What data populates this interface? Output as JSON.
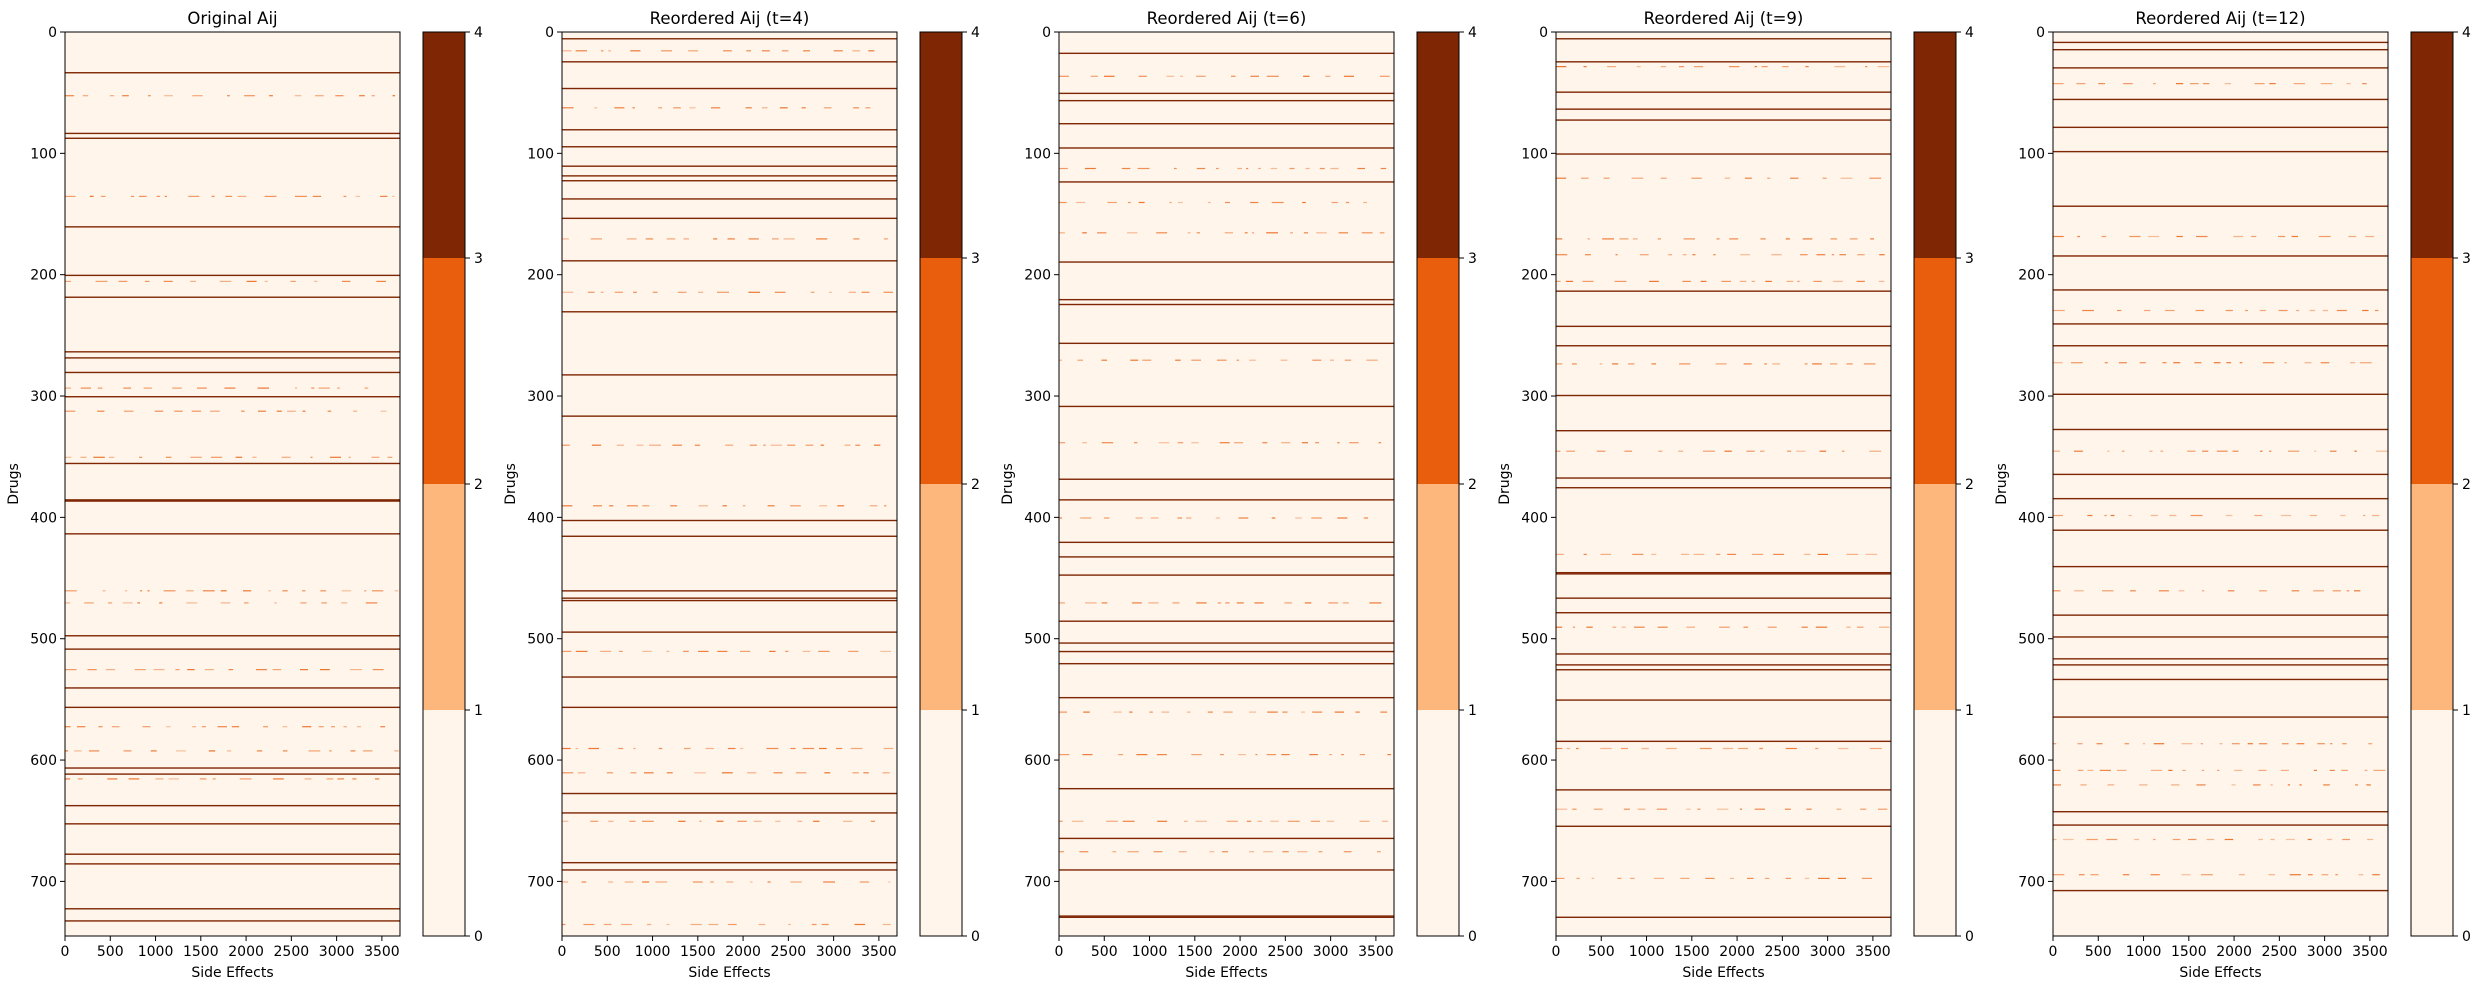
{
  "figure": {
    "panel_count": 5
  },
  "colorbar": {
    "colors": [
      "#fff5eb",
      "#fdb67b",
      "#e95e0d",
      "#7f2704"
    ],
    "bounds": [
      0,
      1,
      2,
      3,
      4
    ],
    "tick_labels": [
      "0",
      "1",
      "2",
      "3",
      "4"
    ]
  },
  "chart_data": [
    {
      "type": "heatmap",
      "title": "Original Aij",
      "xlabel": "Side Effects",
      "ylabel": "Drugs",
      "xlim": [
        0,
        3700
      ],
      "ylim": [
        745,
        0
      ],
      "xticks": [
        0,
        500,
        1000,
        1500,
        2000,
        2500,
        3000,
        3500
      ],
      "yticks": [
        0,
        100,
        200,
        300,
        400,
        500,
        600,
        700
      ],
      "background_value": 0,
      "dense_rows": [
        {
          "row": 33,
          "value": 4
        },
        {
          "row": 83,
          "value": 4
        },
        {
          "row": 87,
          "value": 4
        },
        {
          "row": 160,
          "value": 4
        },
        {
          "row": 200,
          "value": 4
        },
        {
          "row": 218,
          "value": 4
        },
        {
          "row": 263,
          "value": 4
        },
        {
          "row": 268,
          "value": 3
        },
        {
          "row": 280,
          "value": 4
        },
        {
          "row": 300,
          "value": 4
        },
        {
          "row": 355,
          "value": 4
        },
        {
          "row": 385,
          "value": 4
        },
        {
          "row": 386,
          "value": 4
        },
        {
          "row": 413,
          "value": 4
        },
        {
          "row": 497,
          "value": 4
        },
        {
          "row": 508,
          "value": 4
        },
        {
          "row": 540,
          "value": 4
        },
        {
          "row": 556,
          "value": 4
        },
        {
          "row": 606,
          "value": 4
        },
        {
          "row": 611,
          "value": 4
        },
        {
          "row": 637,
          "value": 4
        },
        {
          "row": 652,
          "value": 4
        },
        {
          "row": 677,
          "value": 4
        },
        {
          "row": 685,
          "value": 4
        },
        {
          "row": 722,
          "value": 4
        },
        {
          "row": 732,
          "value": 4
        }
      ],
      "sparse_rows": [
        {
          "row": 52,
          "value": 2
        },
        {
          "row": 135,
          "value": 2
        },
        {
          "row": 205,
          "value": 2
        },
        {
          "row": 293,
          "value": 2
        },
        {
          "row": 312,
          "value": 2
        },
        {
          "row": 350,
          "value": 2
        },
        {
          "row": 460,
          "value": 2
        },
        {
          "row": 470,
          "value": 2
        },
        {
          "row": 525,
          "value": 2
        },
        {
          "row": 572,
          "value": 2
        },
        {
          "row": 592,
          "value": 2
        },
        {
          "row": 615,
          "value": 2
        }
      ]
    },
    {
      "type": "heatmap",
      "title": "Reordered Aij (t=4)",
      "xlabel": "Side Effects",
      "ylabel": "Drugs",
      "xlim": [
        0,
        3700
      ],
      "ylim": [
        745,
        0
      ],
      "xticks": [
        0,
        500,
        1000,
        1500,
        2000,
        2500,
        3000,
        3500
      ],
      "yticks": [
        0,
        100,
        200,
        300,
        400,
        500,
        600,
        700
      ],
      "background_value": 0,
      "dense_rows": [
        {
          "row": 5,
          "value": 4
        },
        {
          "row": 24,
          "value": 4
        },
        {
          "row": 46,
          "value": 4
        },
        {
          "row": 80,
          "value": 4
        },
        {
          "row": 94,
          "value": 4
        },
        {
          "row": 110,
          "value": 4
        },
        {
          "row": 118,
          "value": 4
        },
        {
          "row": 122,
          "value": 4
        },
        {
          "row": 137,
          "value": 4
        },
        {
          "row": 153,
          "value": 4
        },
        {
          "row": 188,
          "value": 4
        },
        {
          "row": 230,
          "value": 4
        },
        {
          "row": 282,
          "value": 4
        },
        {
          "row": 316,
          "value": 4
        },
        {
          "row": 402,
          "value": 4
        },
        {
          "row": 415,
          "value": 4
        },
        {
          "row": 460,
          "value": 4
        },
        {
          "row": 466,
          "value": 4
        },
        {
          "row": 468,
          "value": 4
        },
        {
          "row": 494,
          "value": 4
        },
        {
          "row": 531,
          "value": 4
        },
        {
          "row": 556,
          "value": 4
        },
        {
          "row": 627,
          "value": 4
        },
        {
          "row": 643,
          "value": 4
        },
        {
          "row": 684,
          "value": 4
        },
        {
          "row": 690,
          "value": 4
        }
      ],
      "sparse_rows": [
        {
          "row": 15,
          "value": 2
        },
        {
          "row": 62,
          "value": 2
        },
        {
          "row": 170,
          "value": 2
        },
        {
          "row": 214,
          "value": 2
        },
        {
          "row": 340,
          "value": 2
        },
        {
          "row": 390,
          "value": 2
        },
        {
          "row": 510,
          "value": 2
        },
        {
          "row": 590,
          "value": 2
        },
        {
          "row": 610,
          "value": 2
        },
        {
          "row": 650,
          "value": 2
        },
        {
          "row": 700,
          "value": 2
        },
        {
          "row": 735,
          "value": 2
        }
      ]
    },
    {
      "type": "heatmap",
      "title": "Reordered Aij (t=6)",
      "xlabel": "Side Effects",
      "ylabel": "Drugs",
      "xlim": [
        0,
        3700
      ],
      "ylim": [
        745,
        0
      ],
      "xticks": [
        0,
        500,
        1000,
        1500,
        2000,
        2500,
        3000,
        3500
      ],
      "yticks": [
        0,
        100,
        200,
        300,
        400,
        500,
        600,
        700
      ],
      "background_value": 0,
      "dense_rows": [
        {
          "row": 17,
          "value": 4
        },
        {
          "row": 50,
          "value": 4
        },
        {
          "row": 56,
          "value": 4
        },
        {
          "row": 75,
          "value": 4
        },
        {
          "row": 95,
          "value": 4
        },
        {
          "row": 123,
          "value": 4
        },
        {
          "row": 189,
          "value": 4
        },
        {
          "row": 220,
          "value": 4
        },
        {
          "row": 224,
          "value": 4
        },
        {
          "row": 256,
          "value": 4
        },
        {
          "row": 308,
          "value": 4
        },
        {
          "row": 368,
          "value": 4
        },
        {
          "row": 385,
          "value": 4
        },
        {
          "row": 420,
          "value": 4
        },
        {
          "row": 432,
          "value": 4
        },
        {
          "row": 447,
          "value": 4
        },
        {
          "row": 485,
          "value": 4
        },
        {
          "row": 503,
          "value": 4
        },
        {
          "row": 510,
          "value": 4
        },
        {
          "row": 520,
          "value": 4
        },
        {
          "row": 548,
          "value": 4
        },
        {
          "row": 623,
          "value": 4
        },
        {
          "row": 664,
          "value": 4
        },
        {
          "row": 690,
          "value": 4
        },
        {
          "row": 728,
          "value": 4
        },
        {
          "row": 729,
          "value": 4
        }
      ],
      "sparse_rows": [
        {
          "row": 36,
          "value": 2
        },
        {
          "row": 112,
          "value": 2
        },
        {
          "row": 140,
          "value": 2
        },
        {
          "row": 165,
          "value": 2
        },
        {
          "row": 270,
          "value": 2
        },
        {
          "row": 338,
          "value": 2
        },
        {
          "row": 400,
          "value": 2
        },
        {
          "row": 470,
          "value": 2
        },
        {
          "row": 560,
          "value": 2
        },
        {
          "row": 595,
          "value": 2
        },
        {
          "row": 650,
          "value": 2
        },
        {
          "row": 675,
          "value": 2
        }
      ]
    },
    {
      "type": "heatmap",
      "title": "Reordered Aij (t=9)",
      "xlabel": "Side Effects",
      "ylabel": "Drugs",
      "xlim": [
        0,
        3700
      ],
      "ylim": [
        745,
        0
      ],
      "xticks": [
        0,
        500,
        1000,
        1500,
        2000,
        2500,
        3000,
        3500
      ],
      "yticks": [
        0,
        100,
        200,
        300,
        400,
        500,
        600,
        700
      ],
      "background_value": 0,
      "dense_rows": [
        {
          "row": 5,
          "value": 4
        },
        {
          "row": 24,
          "value": 4
        },
        {
          "row": 49,
          "value": 4
        },
        {
          "row": 63,
          "value": 4
        },
        {
          "row": 72,
          "value": 4
        },
        {
          "row": 100,
          "value": 4
        },
        {
          "row": 213,
          "value": 4
        },
        {
          "row": 242,
          "value": 4
        },
        {
          "row": 258,
          "value": 4
        },
        {
          "row": 299,
          "value": 4
        },
        {
          "row": 328,
          "value": 4
        },
        {
          "row": 367,
          "value": 4
        },
        {
          "row": 375,
          "value": 4
        },
        {
          "row": 445,
          "value": 4
        },
        {
          "row": 446,
          "value": 4
        },
        {
          "row": 466,
          "value": 4
        },
        {
          "row": 478,
          "value": 4
        },
        {
          "row": 512,
          "value": 4
        },
        {
          "row": 521,
          "value": 4
        },
        {
          "row": 525,
          "value": 4
        },
        {
          "row": 550,
          "value": 4
        },
        {
          "row": 584,
          "value": 4
        },
        {
          "row": 624,
          "value": 4
        },
        {
          "row": 654,
          "value": 4
        },
        {
          "row": 729,
          "value": 4
        }
      ],
      "sparse_rows": [
        {
          "row": 28,
          "value": 2
        },
        {
          "row": 120,
          "value": 2
        },
        {
          "row": 170,
          "value": 2
        },
        {
          "row": 183,
          "value": 2
        },
        {
          "row": 205,
          "value": 2
        },
        {
          "row": 273,
          "value": 2
        },
        {
          "row": 345,
          "value": 2
        },
        {
          "row": 430,
          "value": 2
        },
        {
          "row": 490,
          "value": 2
        },
        {
          "row": 590,
          "value": 2
        },
        {
          "row": 640,
          "value": 2
        },
        {
          "row": 697,
          "value": 2
        }
      ]
    },
    {
      "type": "heatmap",
      "title": "Reordered Aij (t=12)",
      "xlabel": "Side Effects",
      "ylabel": "Drugs",
      "xlim": [
        0,
        3700
      ],
      "ylim": [
        745,
        0
      ],
      "xticks": [
        0,
        500,
        1000,
        1500,
        2000,
        2500,
        3000,
        3500
      ],
      "yticks": [
        0,
        100,
        200,
        300,
        400,
        500,
        600,
        700
      ],
      "background_value": 0,
      "dense_rows": [
        {
          "row": 8,
          "value": 4
        },
        {
          "row": 14,
          "value": 4
        },
        {
          "row": 29,
          "value": 4
        },
        {
          "row": 55,
          "value": 4
        },
        {
          "row": 78,
          "value": 4
        },
        {
          "row": 98,
          "value": 4
        },
        {
          "row": 143,
          "value": 4
        },
        {
          "row": 184,
          "value": 4
        },
        {
          "row": 212,
          "value": 4
        },
        {
          "row": 240,
          "value": 4
        },
        {
          "row": 258,
          "value": 4
        },
        {
          "row": 298,
          "value": 4
        },
        {
          "row": 327,
          "value": 4
        },
        {
          "row": 364,
          "value": 4
        },
        {
          "row": 384,
          "value": 4
        },
        {
          "row": 410,
          "value": 4
        },
        {
          "row": 440,
          "value": 4
        },
        {
          "row": 480,
          "value": 4
        },
        {
          "row": 498,
          "value": 4
        },
        {
          "row": 516,
          "value": 4
        },
        {
          "row": 521,
          "value": 4
        },
        {
          "row": 533,
          "value": 4
        },
        {
          "row": 564,
          "value": 4
        },
        {
          "row": 642,
          "value": 4
        },
        {
          "row": 653,
          "value": 4
        },
        {
          "row": 707,
          "value": 4
        }
      ],
      "sparse_rows": [
        {
          "row": 42,
          "value": 2
        },
        {
          "row": 168,
          "value": 2
        },
        {
          "row": 229,
          "value": 2
        },
        {
          "row": 272,
          "value": 2
        },
        {
          "row": 345,
          "value": 2
        },
        {
          "row": 398,
          "value": 2
        },
        {
          "row": 460,
          "value": 2
        },
        {
          "row": 586,
          "value": 2
        },
        {
          "row": 608,
          "value": 2
        },
        {
          "row": 620,
          "value": 2
        },
        {
          "row": 665,
          "value": 2
        },
        {
          "row": 694,
          "value": 2
        }
      ]
    }
  ]
}
